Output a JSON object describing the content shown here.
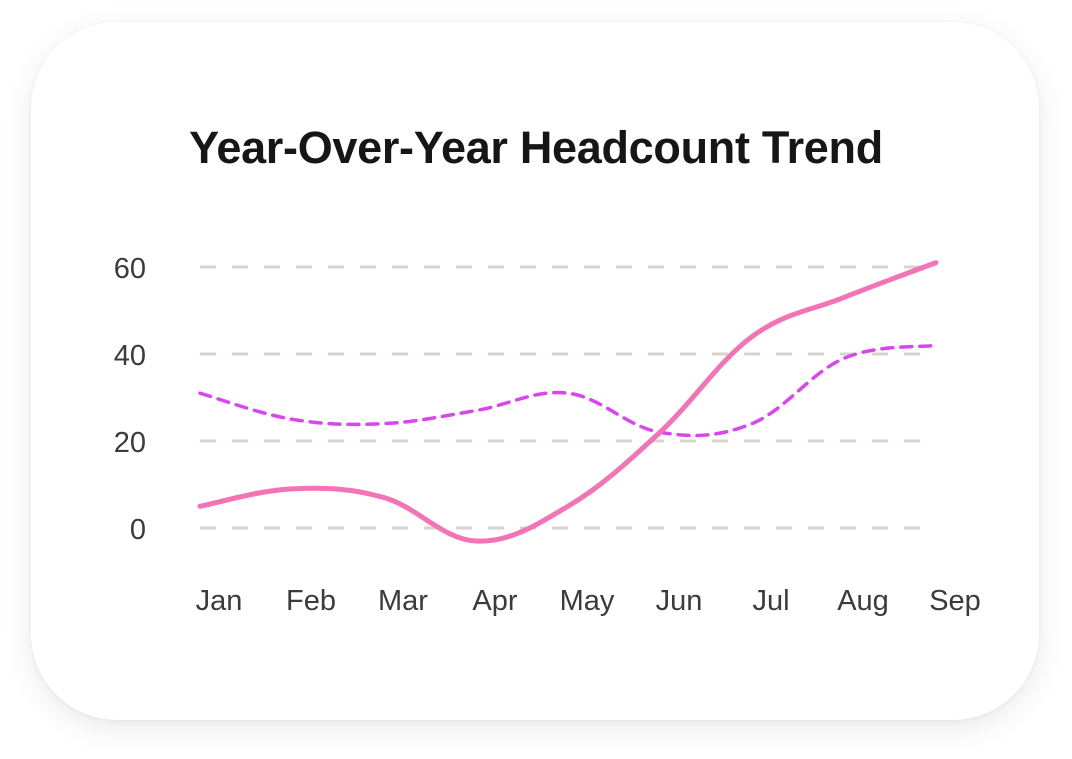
{
  "chart_data": {
    "type": "line",
    "title": "Year-Over-Year Headcount Trend",
    "xlabel": "",
    "ylabel": "",
    "categories": [
      "Jan",
      "Feb",
      "Mar",
      "Apr",
      "May",
      "Jun",
      "Jul",
      "Aug",
      "Sep"
    ],
    "yticks": [
      "60",
      "40",
      "20",
      "0"
    ],
    "ylim": [
      0,
      60
    ],
    "grid": true,
    "series": [
      {
        "values": [
          5,
          9,
          7,
          -3,
          5,
          22,
          44,
          53,
          61
        ],
        "color": "#f472b6",
        "style": "solid"
      },
      {
        "values": [
          31,
          25,
          24,
          27,
          31,
          22,
          24,
          39,
          42
        ],
        "color": "#d946ef",
        "style": "dashed"
      }
    ]
  }
}
